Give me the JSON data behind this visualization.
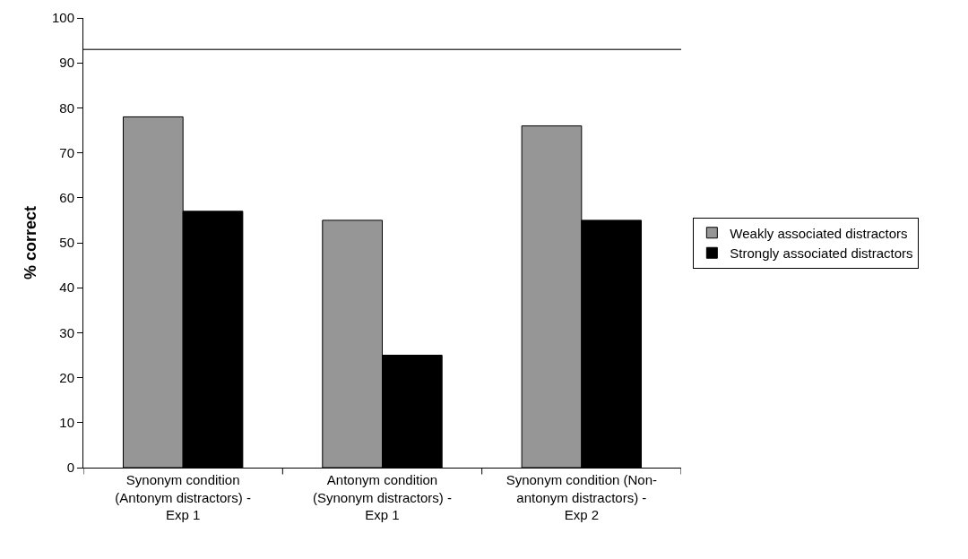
{
  "chart_data": {
    "type": "bar",
    "ylabel": "% correct",
    "categories": [
      "Synonym condition (Antonym distractors) - Exp 1",
      "Antonym condition (Synonym distractors) - Exp 1",
      "Synonym condition (Non-antonym distractors) - Exp 2"
    ],
    "series": [
      {
        "name": "Weakly associated distractors",
        "color": "#969696",
        "values": [
          78,
          55,
          76
        ]
      },
      {
        "name": "Strongly associated distractors",
        "color": "#000000",
        "values": [
          57,
          25,
          55
        ]
      }
    ],
    "ylim": [
      0,
      100
    ],
    "yticks": [
      0,
      10,
      20,
      30,
      40,
      50,
      60,
      70,
      80,
      90,
      100
    ],
    "ref_lines": [
      {
        "axis": "y",
        "value": 93,
        "color": "#444444"
      }
    ],
    "grid": false,
    "legend": "right"
  }
}
